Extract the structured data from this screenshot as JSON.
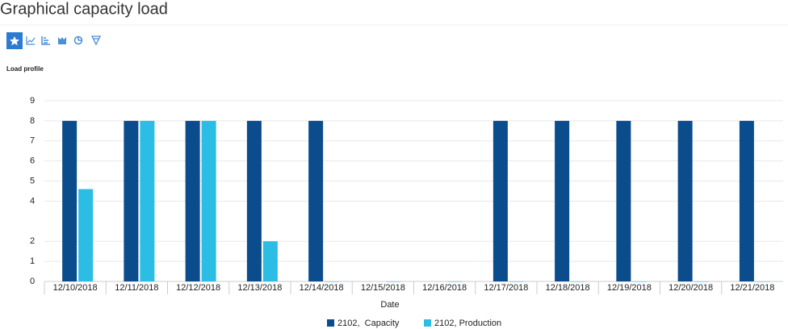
{
  "header": {
    "title": "Graphical capacity load"
  },
  "chart_data": {
    "type": "bar",
    "title": "Load profile",
    "x_label": "Date",
    "categories": [
      "12/10/2018",
      "12/11/2018",
      "12/12/2018",
      "12/13/2018",
      "12/14/2018",
      "12/15/2018",
      "12/16/2018",
      "12/17/2018",
      "12/18/2018",
      "12/19/2018",
      "12/20/2018",
      "12/21/2018"
    ],
    "series": [
      {
        "name": "2102,  Capacity",
        "color": "#0b4c8c",
        "values": [
          8,
          8,
          8,
          8,
          8,
          null,
          null,
          8,
          8,
          8,
          8,
          8
        ]
      },
      {
        "name": "2102, Production",
        "color": "#2bbde4",
        "values": [
          4.6,
          8,
          8,
          2,
          0,
          0,
          0,
          0,
          0,
          0,
          0,
          0
        ]
      }
    ],
    "ylim": [
      0,
      9
    ],
    "yticks": [
      0,
      1,
      2,
      4,
      5,
      6,
      7,
      8,
      9
    ],
    "grid": true,
    "legend": "bottom"
  }
}
